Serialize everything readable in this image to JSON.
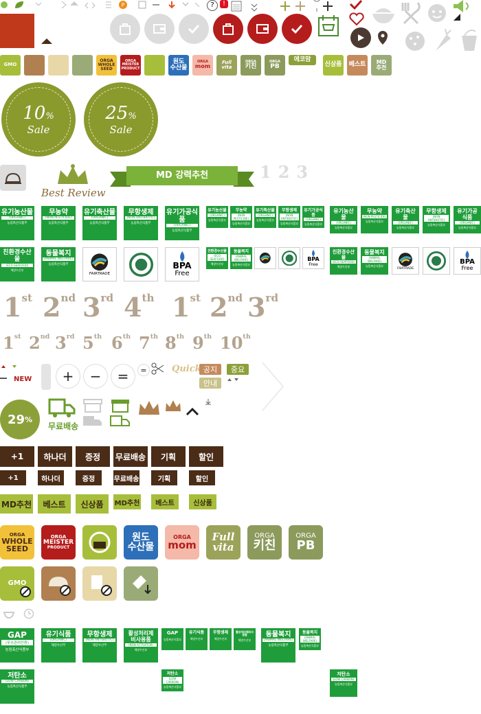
{
  "top_icons": {
    "play": "play-icon",
    "pin": "map-pin-icon",
    "heart": "heart-icon",
    "check": "check-icon",
    "bowl": "bowl-icon",
    "utensils": "utensils-icon",
    "face": "face-icon",
    "speaker": "speaker-icon",
    "question": "?",
    "exclaim": "!",
    "calendar": "calendar-icon"
  },
  "circle_buttons": [
    {
      "name": "cart-gray",
      "icon": "shopping-bag-icon"
    },
    {
      "name": "wallet-gray",
      "icon": "wallet-icon"
    },
    {
      "name": "check-gray",
      "icon": "check-icon"
    },
    {
      "name": "cart-red",
      "icon": "shopping-bag-icon"
    },
    {
      "name": "wallet-red",
      "icon": "wallet-icon"
    },
    {
      "name": "check-red",
      "icon": "check-icon"
    }
  ],
  "small_badges": {
    "whole_seed": {
      "top": "ORGA",
      "main": "WHOLE SEED"
    },
    "meister": {
      "top": "ORGA",
      "main": "MEISTER",
      "sub": "PRODUCT"
    },
    "wondo": "원도\n수산물",
    "orga_mom": {
      "top": "ORGA",
      "main": "mom"
    },
    "full_vita": "Full vita",
    "orga_kitchen": {
      "top": "ORGA",
      "main": "키친"
    },
    "orga_pb": {
      "top": "ORGA",
      "main": "PB"
    },
    "eco_mom": "에코맘",
    "new_product": "신상품",
    "best": "베스트",
    "md_pick": "MD\n추천"
  },
  "sale_seals": [
    {
      "num": "10",
      "pct": "%",
      "label": "Sale"
    },
    {
      "num": "25",
      "pct": "%",
      "label": "Sale"
    }
  ],
  "best_review": "Best Review",
  "md_banner": "MD 강력추천",
  "ranks": [
    "1",
    "2",
    "3"
  ],
  "certs_row1": [
    {
      "ko": "유기농산물",
      "en": "(ORGANIC)",
      "foot": "농림축산식품부"
    },
    {
      "ko": "무농약",
      "en": "(NON PESTICIDE)",
      "foot": "농림축산식품부"
    },
    {
      "ko": "유기축산물",
      "en": "(ORGANIC)",
      "foot": "농림축산식품부"
    },
    {
      "ko": "무항생제",
      "en": "(NON ANTIBIOTIC)",
      "foot": "농림축산식품부"
    },
    {
      "ko": "유기가공식품",
      "en": "(ORGANIC)",
      "foot": "농림축산식품부"
    }
  ],
  "certs_row2": [
    {
      "ko": "친환경수산물",
      "en": "(ECO SEAFOOD)",
      "foot": "해양수산부"
    },
    {
      "ko": "동물복지",
      "en": "(ANIMAL WELFARE)",
      "foot": "농림축산식품부"
    }
  ],
  "fairtrade": "FAIRTRADE",
  "bpa": {
    "main": "BPA",
    "sub": "Free"
  },
  "ordinals1": [
    {
      "n": "1",
      "s": "st"
    },
    {
      "n": "2",
      "s": "nd"
    },
    {
      "n": "3",
      "s": "rd"
    },
    {
      "n": "4",
      "s": "th"
    },
    {
      "n": "1",
      "s": "st"
    },
    {
      "n": "2",
      "s": "nd"
    },
    {
      "n": "3",
      "s": "rd"
    }
  ],
  "ordinals2": [
    {
      "n": "1",
      "s": "st"
    },
    {
      "n": "2",
      "s": "nd"
    },
    {
      "n": "3",
      "s": "rd"
    },
    {
      "n": "5",
      "s": "th"
    },
    {
      "n": "6",
      "s": "th"
    },
    {
      "n": "7",
      "s": "th"
    },
    {
      "n": "8",
      "s": "th"
    },
    {
      "n": "9",
      "s": "th"
    },
    {
      "n": "10",
      "s": "th"
    }
  ],
  "misc": {
    "new": "NEW",
    "quick": "Quick",
    "notice": "공지",
    "important": "중요",
    "guide": "안내",
    "plus": "+",
    "minus": "−",
    "equals": "="
  },
  "discount": {
    "value": "29",
    "pct": "%"
  },
  "free_delivery": "무료배송",
  "dark_buttons": [
    "+1",
    "하나더",
    "증정",
    "무료배송",
    "기획",
    "할인"
  ],
  "green_buttons": [
    "MD추천",
    "베스트",
    "신상품"
  ],
  "big_badges": {
    "whole_seed": {
      "top": "ORGA",
      "main": "WHOLE",
      "sub": "SEED"
    },
    "meister": {
      "top": "ORGA",
      "main": "MEISTER",
      "sub": "PRODUCT"
    },
    "wondo": {
      "a": "원도",
      "b": "수산물"
    },
    "orga_mom": {
      "top": "ORGA",
      "main": "mom"
    },
    "full_vita": {
      "a": "Full",
      "b": "vita"
    },
    "orga_kitchen": {
      "top": "ORGA",
      "main": "키친"
    },
    "orga_pb": {
      "top": "ORGA",
      "main": "PB"
    },
    "gmo": "GMO"
  },
  "certs_row3": [
    {
      "ko": "GAP",
      "en": "(우수관리인증)",
      "foot": "농림축산식품부"
    },
    {
      "ko": "유기식품",
      "en": "(ORGANIC)",
      "foot": "해양수산부"
    },
    {
      "ko": "무항생제",
      "en": "(NON ANTIBIOTIC)",
      "foot": "해양수산부"
    },
    {
      "ko": "활성처리제\n비사용품",
      "en": "(NON ACTIVATOR)",
      "foot": "해양수산부"
    }
  ],
  "certs_row3_small": [
    {
      "ko": "GAP",
      "en": "",
      "foot": "농림축산식품부"
    },
    {
      "ko": "유기식품",
      "en": "",
      "foot": "해양수산부"
    },
    {
      "ko": "무항생제",
      "en": "",
      "foot": "해양수산부"
    },
    {
      "ko": "활성처리제비사용품",
      "en": "",
      "foot": "해양수산부"
    }
  ],
  "animal_welfare": {
    "ko": "동물복지",
    "en": "(ANIMAL WELFARE)",
    "foot": "농림축산식품부"
  },
  "low_carbon": {
    "ko": "저탄소",
    "en": "(LOW CARBON)",
    "foot": "농림축산식품부"
  },
  "colors": {
    "brown": "#4a2c17",
    "olive": "#8a9a2d",
    "green": "#1f9d3a",
    "red": "#b51c1c",
    "lime": "#a7be3b"
  }
}
